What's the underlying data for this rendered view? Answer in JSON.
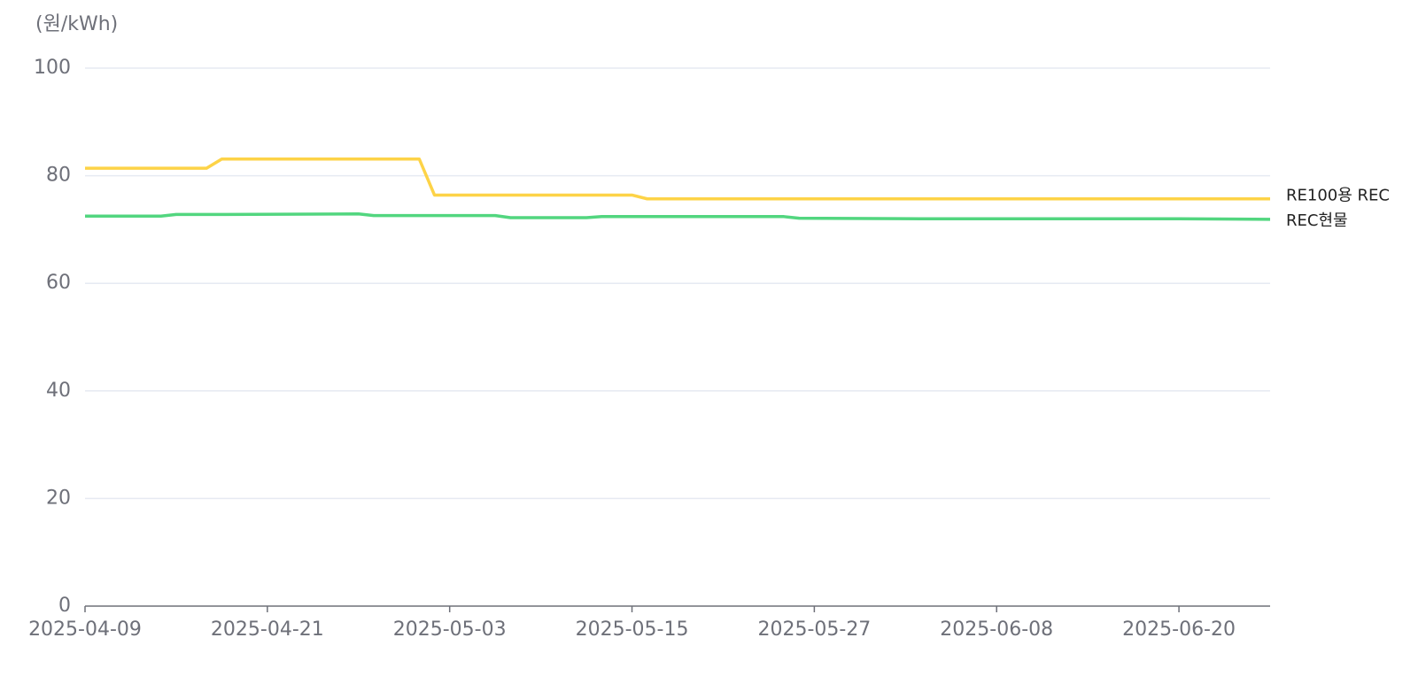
{
  "chart_data": {
    "type": "line",
    "y_axis_label": "(원/kWh)",
    "x": [
      "2025-04-09",
      "2025-04-14",
      "2025-04-15",
      "2025-04-17",
      "2025-04-18",
      "2025-04-27",
      "2025-04-28",
      "2025-05-01",
      "2025-05-02",
      "2025-05-06",
      "2025-05-07",
      "2025-05-12",
      "2025-05-13",
      "2025-05-15",
      "2025-05-16",
      "2025-05-25",
      "2025-05-26",
      "2025-06-03",
      "2025-06-20",
      "2025-06-26"
    ],
    "series": [
      {
        "name": "RE100용 REC",
        "color": "#fdd347",
        "values": [
          81.4,
          81.4,
          81.4,
          81.4,
          83.1,
          83.1,
          83.1,
          83.1,
          76.4,
          76.4,
          76.4,
          76.4,
          76.4,
          76.4,
          75.7,
          75.7,
          75.7,
          75.7,
          75.7,
          75.7
        ]
      },
      {
        "name": "REC현물",
        "color": "#52d67f",
        "values": [
          72.5,
          72.5,
          72.8,
          72.8,
          72.8,
          72.9,
          72.6,
          72.6,
          72.6,
          72.6,
          72.2,
          72.2,
          72.4,
          72.4,
          72.4,
          72.4,
          72.1,
          72.0,
          72.0,
          71.9
        ]
      }
    ],
    "xlim": [
      "2025-04-09",
      "2025-06-26"
    ],
    "xticks": [
      "2025-04-09",
      "2025-04-21",
      "2025-05-03",
      "2025-05-15",
      "2025-05-27",
      "2025-06-08",
      "2025-06-20"
    ],
    "ylim": [
      0,
      100
    ],
    "yticks": [
      0,
      20,
      40,
      60,
      80,
      100
    ],
    "grid": true
  }
}
